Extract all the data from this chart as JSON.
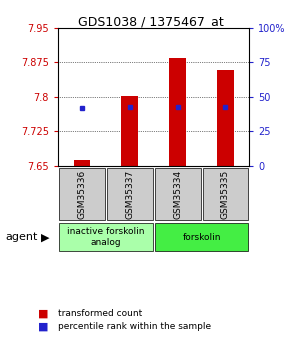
{
  "title": "GDS1038 / 1375467_at",
  "samples": [
    "GSM35336",
    "GSM35337",
    "GSM35334",
    "GSM35335"
  ],
  "bar_bottoms": [
    7.65,
    7.65,
    7.65,
    7.65
  ],
  "bar_tops": [
    7.663,
    7.802,
    7.883,
    7.857
  ],
  "blue_y": [
    7.775,
    7.778,
    7.778,
    7.778
  ],
  "bar_color": "#cc0000",
  "blue_color": "#2222cc",
  "ylim_left": [
    7.65,
    7.95
  ],
  "ylim_right": [
    0,
    100
  ],
  "yticks_left": [
    7.65,
    7.725,
    7.8,
    7.875,
    7.95
  ],
  "yticks_right": [
    0,
    25,
    50,
    75,
    100
  ],
  "ytick_labels_left": [
    "7.65",
    "7.725",
    "7.8",
    "7.875",
    "7.95"
  ],
  "ytick_labels_right": [
    "0",
    "25",
    "50",
    "75",
    "100%"
  ],
  "groups": [
    {
      "label": "inactive forskolin\nanalog",
      "cols": [
        0,
        1
      ],
      "color": "#aaffaa"
    },
    {
      "label": "forskolin",
      "cols": [
        2,
        3
      ],
      "color": "#44ee44"
    }
  ],
  "agent_label": "agent",
  "legend_red": "transformed count",
  "legend_blue": "percentile rank within the sample",
  "bar_width": 0.35,
  "background_color": "#ffffff"
}
